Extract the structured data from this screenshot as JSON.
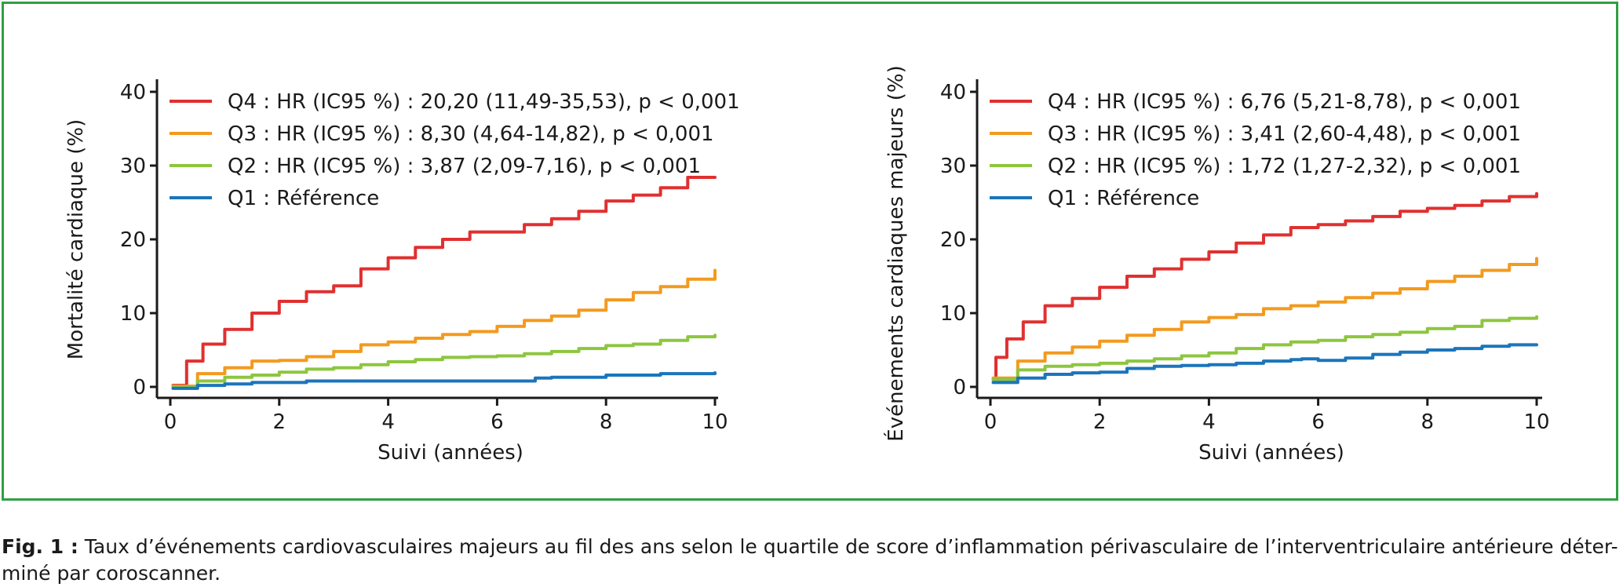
{
  "caption": {
    "lead": "Fig. 1 :",
    "text": " Taux d’événements cardiovasculaires majeurs au fil des ans selon le quartile de score d’inflammation périvasculaire de l’interventriculaire antérieure déter-miné par coroscanner."
  },
  "colors": {
    "Q4": "#e03030",
    "Q3": "#f39a1e",
    "Q2": "#8dc63f",
    "Q1": "#1b75bb",
    "frame": "#2ea043"
  },
  "chart_data": [
    {
      "type": "line",
      "xlabel": "Suivi (années)",
      "ylabel": "Mortalité cardiaque (%)",
      "xlim": [
        0,
        10
      ],
      "ylim": [
        0,
        40
      ],
      "xticks": [
        0,
        2,
        4,
        6,
        8,
        10
      ],
      "yticks": [
        0,
        10,
        20,
        30,
        40
      ],
      "legend_position": "top-left",
      "series": [
        {
          "name": "Q4 : HR (IC95 %) : 20,20 (11,49-35,53), p < 0,001",
          "color": "#e03030",
          "x": [
            0.05,
            0.3,
            0.6,
            1.0,
            1.5,
            2.0,
            2.5,
            3.0,
            3.5,
            4.0,
            4.5,
            5.0,
            5.5,
            6.0,
            6.5,
            7.0,
            7.5,
            8.0,
            8.5,
            9.0,
            9.5,
            10.0
          ],
          "y": [
            0.2,
            3.5,
            5.8,
            7.8,
            10.0,
            11.6,
            12.9,
            13.7,
            16.0,
            17.5,
            18.9,
            20.0,
            21.0,
            21.0,
            22.0,
            22.8,
            23.8,
            25.2,
            26.0,
            27.0,
            28.4,
            28.4
          ]
        },
        {
          "name": "Q3 : HR (IC95 %) : 8,30 (4,64-14,82), p < 0,001",
          "color": "#f39a1e",
          "x": [
            0.05,
            0.5,
            1.0,
            1.5,
            2.0,
            2.5,
            3.0,
            3.5,
            4.0,
            4.5,
            5.0,
            5.5,
            6.0,
            6.5,
            7.0,
            7.5,
            8.0,
            8.5,
            9.0,
            9.5,
            10.0
          ],
          "y": [
            0.1,
            1.8,
            2.6,
            3.5,
            3.6,
            4.1,
            4.8,
            5.7,
            6.1,
            6.6,
            7.1,
            7.5,
            8.2,
            9.0,
            9.6,
            10.4,
            11.8,
            12.8,
            13.6,
            14.6,
            15.8
          ]
        },
        {
          "name": "Q2 : HR (IC95 %) : 3,87 (2,09-7,16), p < 0,001",
          "color": "#8dc63f",
          "x": [
            0.05,
            0.5,
            1.0,
            1.5,
            2.0,
            2.5,
            3.0,
            3.5,
            4.0,
            4.5,
            5.0,
            5.5,
            6.0,
            6.5,
            7.0,
            7.5,
            8.0,
            8.5,
            9.0,
            9.5,
            10.0
          ],
          "y": [
            0.0,
            0.8,
            1.3,
            1.6,
            2.0,
            2.4,
            2.6,
            3.0,
            3.4,
            3.7,
            4.0,
            4.1,
            4.2,
            4.5,
            4.8,
            5.2,
            5.6,
            5.8,
            6.3,
            6.8,
            7.0
          ]
        },
        {
          "name": "Q1 : Référence",
          "color": "#1b75bb",
          "x": [
            0.05,
            0.5,
            1.0,
            1.5,
            2.5,
            4.0,
            5.0,
            6.0,
            6.7,
            7.0,
            8.0,
            9.0,
            10.0
          ],
          "y": [
            -0.2,
            0.2,
            0.4,
            0.6,
            0.8,
            0.8,
            0.8,
            0.8,
            1.2,
            1.3,
            1.6,
            1.8,
            1.9
          ]
        }
      ]
    },
    {
      "type": "line",
      "xlabel": "Suivi (années)",
      "ylabel": "Événements cardiaques majeurs (%)",
      "xlim": [
        0,
        10
      ],
      "ylim": [
        0,
        40
      ],
      "xticks": [
        0,
        2,
        4,
        6,
        8,
        10
      ],
      "yticks": [
        0,
        10,
        20,
        30,
        40
      ],
      "legend_position": "top-left",
      "series": [
        {
          "name": "Q4 : HR (IC95 %) : 6,76 (5,21-8,78), p < 0,001",
          "color": "#e03030",
          "x": [
            0.05,
            0.1,
            0.3,
            0.6,
            1.0,
            1.5,
            2.0,
            2.5,
            3.0,
            3.5,
            4.0,
            4.5,
            5.0,
            5.5,
            6.0,
            6.5,
            7.0,
            7.5,
            8.0,
            8.5,
            9.0,
            9.5,
            10.0
          ],
          "y": [
            1.0,
            4.0,
            6.5,
            8.8,
            11.0,
            12.0,
            13.5,
            15.0,
            16.0,
            17.3,
            18.3,
            19.5,
            20.6,
            21.6,
            22.0,
            22.5,
            23.1,
            23.8,
            24.2,
            24.6,
            25.2,
            25.8,
            26.2
          ]
        },
        {
          "name": "Q3 : HR (IC95 %) : 3,41 (2,60-4,48), p < 0,001",
          "color": "#f39a1e",
          "x": [
            0.05,
            0.5,
            1.0,
            1.5,
            2.0,
            2.5,
            3.0,
            3.5,
            4.0,
            4.5,
            5.0,
            5.5,
            6.0,
            6.5,
            7.0,
            7.5,
            8.0,
            8.5,
            9.0,
            9.5,
            10.0
          ],
          "y": [
            1.2,
            3.5,
            4.6,
            5.4,
            6.2,
            7.0,
            7.8,
            8.8,
            9.4,
            9.8,
            10.6,
            11.0,
            11.5,
            12.1,
            12.7,
            13.3,
            14.3,
            15.0,
            15.8,
            16.6,
            17.4
          ]
        },
        {
          "name": "Q2 : HR (IC95 %) : 1,72 (1,27-2,32), p < 0,001",
          "color": "#8dc63f",
          "x": [
            0.05,
            0.5,
            1.0,
            1.5,
            2.0,
            2.5,
            3.0,
            3.5,
            4.0,
            4.5,
            5.0,
            5.5,
            6.0,
            6.5,
            7.0,
            7.5,
            8.0,
            8.5,
            9.0,
            9.5,
            10.0
          ],
          "y": [
            1.0,
            2.3,
            2.8,
            3.0,
            3.2,
            3.5,
            3.8,
            4.2,
            4.6,
            5.2,
            5.7,
            6.1,
            6.3,
            6.8,
            7.1,
            7.4,
            7.9,
            8.2,
            9.0,
            9.3,
            9.5
          ]
        },
        {
          "name": "Q1 : Référence",
          "color": "#1b75bb",
          "x": [
            0.05,
            0.5,
            1.0,
            1.5,
            2.0,
            2.5,
            3.0,
            3.5,
            4.0,
            4.5,
            5.0,
            5.5,
            5.7,
            6.0,
            6.5,
            7.0,
            7.5,
            8.0,
            8.5,
            9.0,
            9.5,
            10.0
          ],
          "y": [
            0.6,
            1.2,
            1.7,
            1.9,
            2.0,
            2.5,
            2.8,
            2.9,
            3.0,
            3.2,
            3.5,
            3.7,
            3.8,
            3.6,
            3.9,
            4.4,
            4.7,
            5.0,
            5.2,
            5.5,
            5.7,
            5.7
          ]
        }
      ]
    }
  ]
}
